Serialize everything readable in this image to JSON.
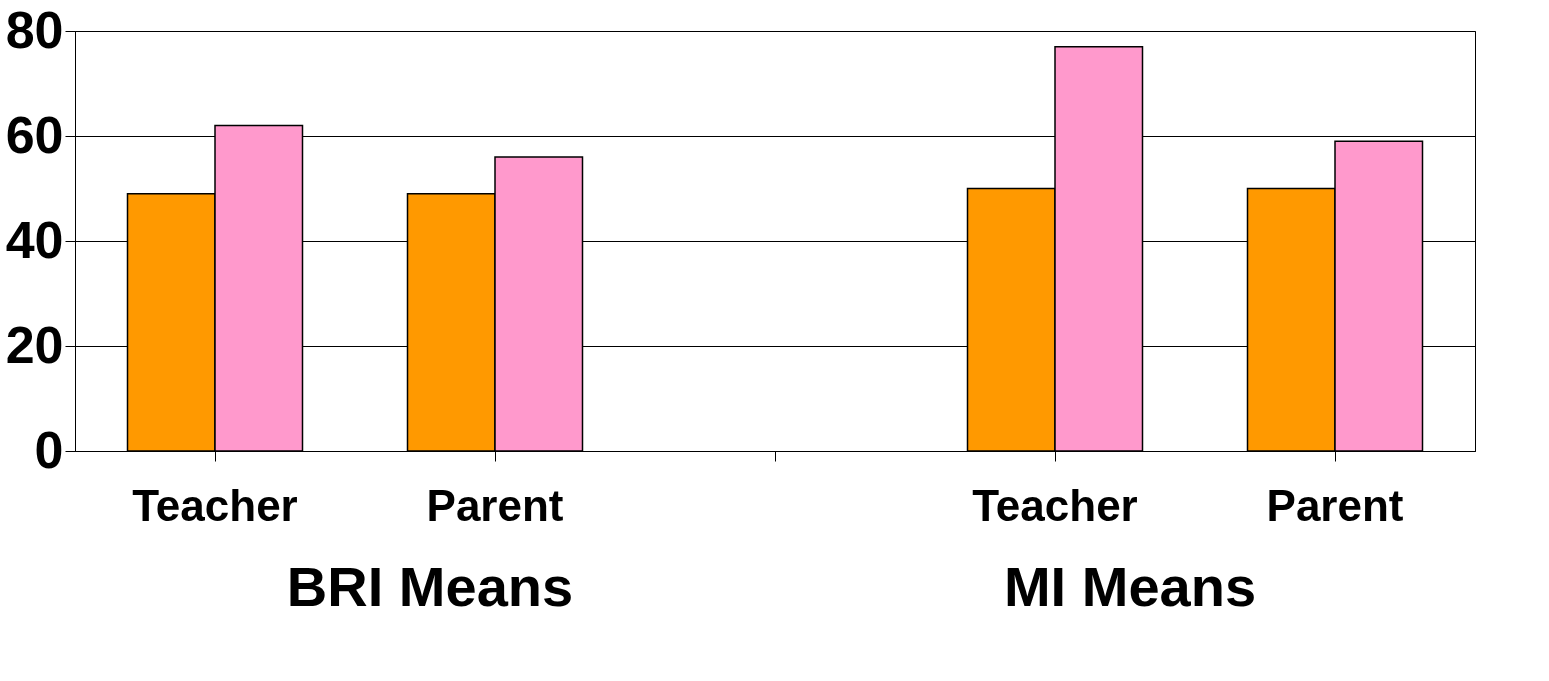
{
  "chart_data": {
    "type": "bar",
    "categories": [
      "Teacher",
      "Parent",
      null,
      "Teacher",
      "Parent"
    ],
    "series": [
      {
        "color": "#ff9900",
        "values": [
          49,
          49,
          null,
          50,
          50
        ]
      },
      {
        "color": "#ff99cc",
        "values": [
          62,
          56,
          null,
          77,
          59
        ]
      }
    ],
    "ylim": [
      0,
      80
    ],
    "yticks": [
      0,
      20,
      40,
      60,
      80
    ],
    "grid": "y",
    "legend": false,
    "annotations": [
      "BRI Means",
      "MI Means"
    ]
  }
}
